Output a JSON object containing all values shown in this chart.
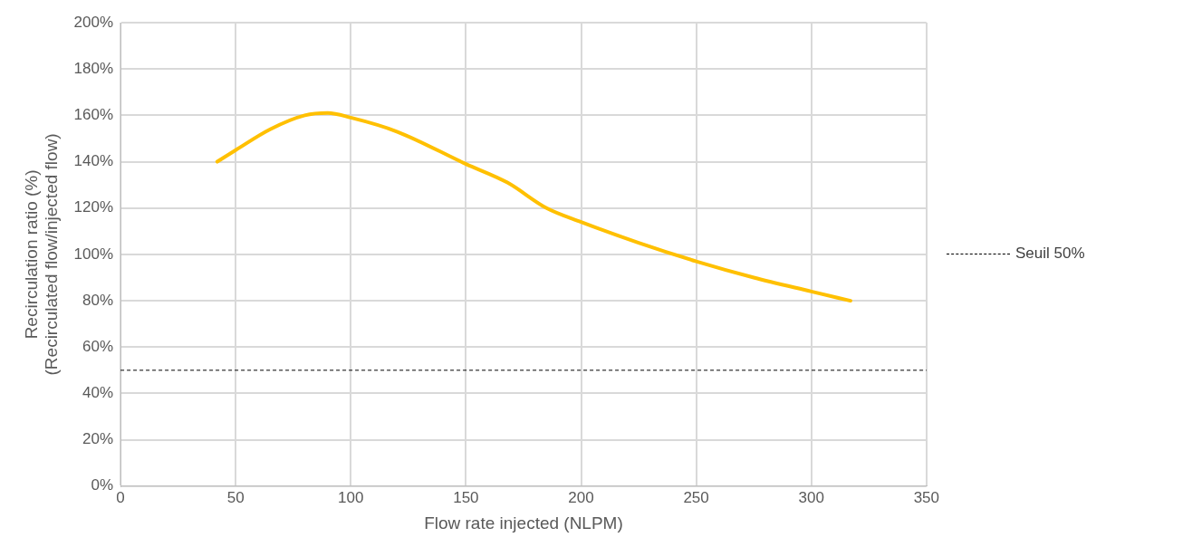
{
  "chart_data": {
    "type": "line",
    "xlabel": "Flow rate injected (NLPM)",
    "ylabel": "Recirculation ratio (%)\n(Recirculated flow/injected flow)",
    "x": [
      42,
      50,
      65,
      80,
      90,
      100,
      120,
      150,
      168,
      185,
      200,
      225,
      250,
      275,
      300,
      317
    ],
    "series": [
      {
        "color": "#ffc000",
        "values": [
          140,
          145,
          154,
          160,
          161,
          159,
          153,
          139,
          131,
          120,
          114,
          105,
          97,
          90,
          84,
          80
        ]
      }
    ],
    "xlim": [
      0,
      350
    ],
    "xticks": [
      0,
      50,
      100,
      150,
      200,
      250,
      300,
      350
    ],
    "ylim": [
      0,
      200
    ],
    "yticks": [
      {
        "value": 0,
        "label": "0%"
      },
      {
        "value": 20,
        "label": "20%"
      },
      {
        "value": 40,
        "label": "40%"
      },
      {
        "value": 60,
        "label": "60%"
      },
      {
        "value": 80,
        "label": "80%"
      },
      {
        "value": 100,
        "label": "100%"
      },
      {
        "value": 120,
        "label": "120%"
      },
      {
        "value": 140,
        "label": "140%"
      },
      {
        "value": 160,
        "label": "160%"
      },
      {
        "value": 180,
        "label": "180%"
      },
      {
        "value": 200,
        "label": "200%"
      }
    ],
    "ref_lines": [
      {
        "axis": "y",
        "value": 50,
        "label": "Seuil 50%",
        "color": "#000000",
        "line_style": "dashed"
      }
    ],
    "grid": true,
    "legend": "right",
    "marker": "none",
    "line_style": "solid"
  }
}
